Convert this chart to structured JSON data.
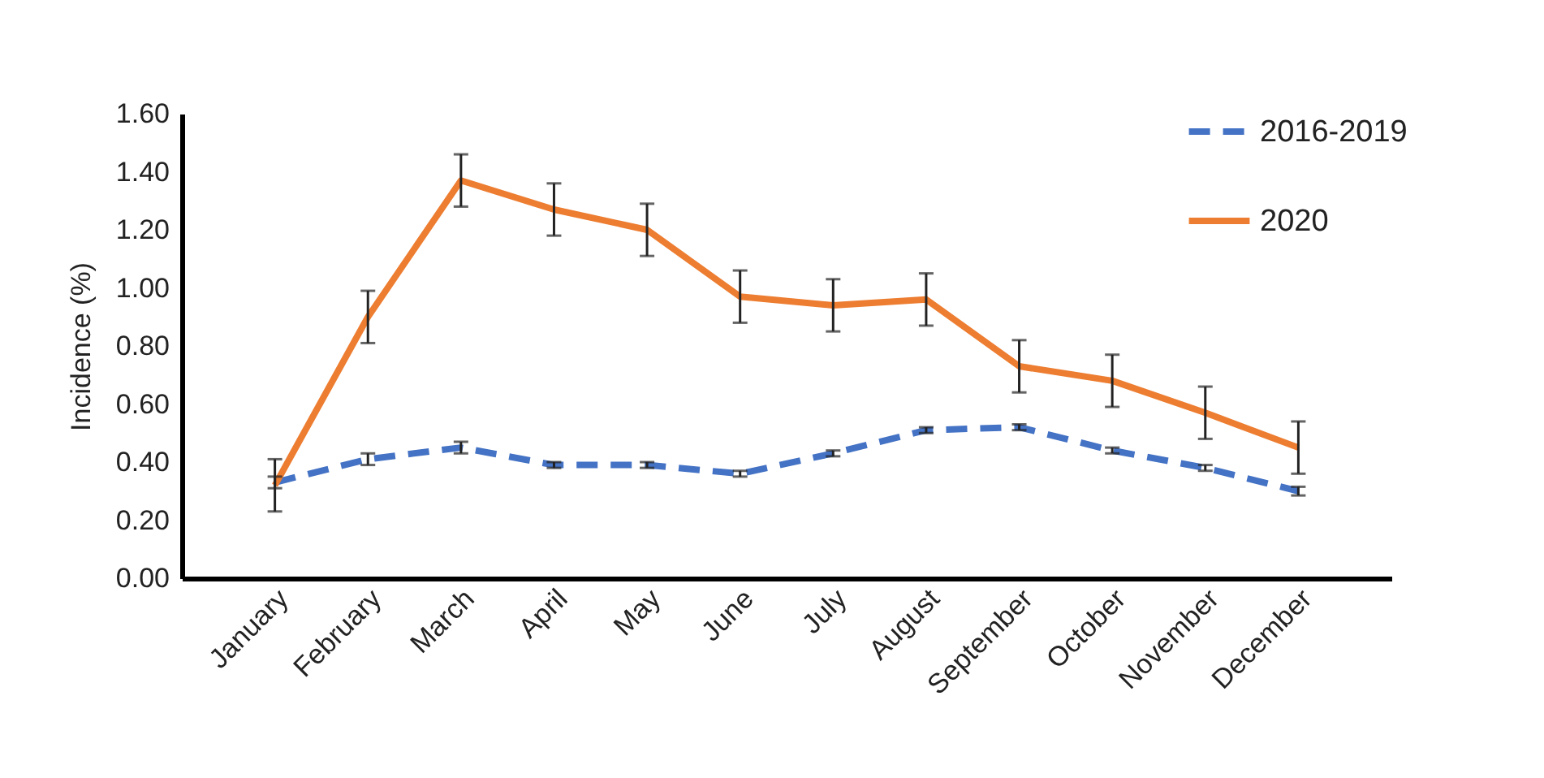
{
  "chart_data": {
    "type": "line",
    "ylabel": "Incidence (%)",
    "categories": [
      "January",
      "February",
      "March",
      "April",
      "May",
      "June",
      "July",
      "August",
      "September",
      "October",
      "November",
      "December"
    ],
    "series": [
      {
        "name": "2016-2019",
        "color": "#4472c4",
        "line_style": "dashed",
        "values": [
          0.33,
          0.41,
          0.45,
          0.39,
          0.39,
          0.36,
          0.43,
          0.51,
          0.52,
          0.44,
          0.38,
          0.3
        ],
        "errors": [
          0.02,
          0.02,
          0.02,
          0.01,
          0.01,
          0.01,
          0.01,
          0.01,
          0.01,
          0.01,
          0.01,
          0.015
        ]
      },
      {
        "name": "2020",
        "color": "#ed7d31",
        "line_style": "solid",
        "values": [
          0.32,
          0.9,
          1.37,
          1.27,
          1.2,
          0.97,
          0.94,
          0.96,
          0.73,
          0.68,
          0.57,
          0.45
        ],
        "errors": [
          0.09,
          0.09,
          0.09,
          0.09,
          0.09,
          0.09,
          0.09,
          0.09,
          0.09,
          0.09,
          0.09,
          0.09
        ]
      }
    ],
    "ylim": [
      0,
      1.6
    ],
    "yticks": [
      {
        "value": 0,
        "label": "0.00"
      },
      {
        "value": 0.2,
        "label": "0.20"
      },
      {
        "value": 0.4,
        "label": "0.40"
      },
      {
        "value": 0.6,
        "label": "0.60"
      },
      {
        "value": 0.8,
        "label": "0.80"
      },
      {
        "value": 1.0,
        "label": "1.00"
      },
      {
        "value": 1.2,
        "label": "1.20"
      },
      {
        "value": 1.4,
        "label": "1.40"
      },
      {
        "value": 1.6,
        "label": "1.60"
      }
    ],
    "grid": false,
    "legend": "top right"
  }
}
